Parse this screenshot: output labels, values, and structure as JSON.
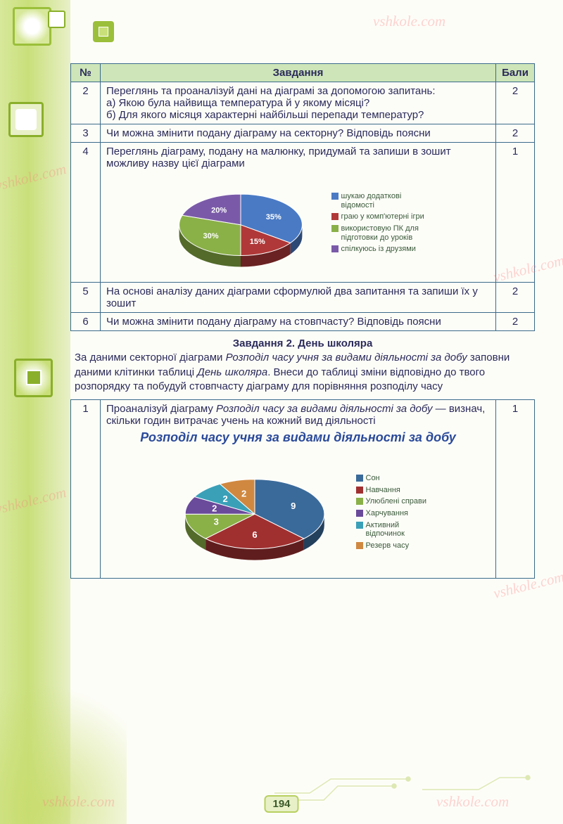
{
  "page_number": "194",
  "watermark_text": "vshkole.com",
  "table": {
    "headers": {
      "num": "№",
      "task": "Завдання",
      "score": "Бали"
    },
    "rows": [
      {
        "num": "2",
        "text": "Переглянь та проаналізуй дані на діаграмі за допомогою запитань:\nа) Якою була найвища температура й у якому місяці?\nб) Для якого місяця характерні найбільші перепади температур?",
        "score": "2"
      },
      {
        "num": "3",
        "text": "Чи можна змінити подану діаграму на секторну? Відповідь поясни",
        "score": "2"
      },
      {
        "num": "4",
        "text": "Переглянь діаграму, подану на малюнку, придумай та запиши в зошит можливу назву цієї діаграми",
        "score": "1"
      },
      {
        "num": "5",
        "text": "На основі аналізу даних діаграми сформулюй два запитання та запиши їх у зошит",
        "score": "2"
      },
      {
        "num": "6",
        "text": "Чи можна змінити подану діаграму на стовпчасту? Відповідь поясни",
        "score": "2"
      }
    ]
  },
  "chart1": {
    "type": "pie",
    "slices": [
      {
        "label": "35%",
        "value": 35,
        "color": "#4a7ac4",
        "legend": "шукаю додаткові відомості"
      },
      {
        "label": "15%",
        "value": 15,
        "color": "#b03838",
        "legend": "граю у комп'ютерні ігри"
      },
      {
        "label": "30%",
        "value": 30,
        "color": "#8ab048",
        "legend": "використовую ПК для підготовки до уроків"
      },
      {
        "label": "20%",
        "value": 20,
        "color": "#7a5aa8",
        "legend": "спілкуюсь із друзями"
      }
    ],
    "background_color": "#ffffff",
    "label_fontsize": 11,
    "legend_fontsize": 11,
    "tilt_ratio": 0.5
  },
  "task2": {
    "title": "Завдання 2. День школяра",
    "intro_prefix": "За даними секторної діаграми ",
    "intro_italic1": "Розподіл часу учня за видами діяльності за добу",
    "intro_mid": " заповни даними клітинки таблиці ",
    "intro_italic2": "День школяра",
    "intro_suffix": ". Внеси до таблиці зміни відповідно до твого розпорядку та побудуй стовпчасту діаграму для порівняння розподілу часу",
    "row1_prefix": "Проаналізуй діаграму ",
    "row1_italic": "Розподіл часу за видами діяльності за добу",
    "row1_suffix": " — визнач, скільки годин витрачає учень на кожний вид діяльності",
    "row1_num": "1",
    "row1_score": "1"
  },
  "chart2": {
    "type": "pie",
    "title": "Розподіл часу учня за видами діяльності за добу",
    "slices": [
      {
        "label": "9",
        "value": 9,
        "color": "#3a6a9a",
        "legend": "Сон"
      },
      {
        "label": "6",
        "value": 6,
        "color": "#a03030",
        "legend": "Навчання"
      },
      {
        "label": "3",
        "value": 3,
        "color": "#8ab048",
        "legend": "Улюблені справи"
      },
      {
        "label": "2",
        "value": 2,
        "color": "#6a4a9a",
        "legend": "Харчування"
      },
      {
        "label": "2",
        "value": 2,
        "color": "#3aa0b8",
        "legend": "Активний відпочинок"
      },
      {
        "label": "2",
        "value": 2,
        "color": "#d08840",
        "legend": "Резерв часу"
      }
    ],
    "title_color": "#2a4a9a",
    "title_fontsize": 18,
    "label_fontsize": 13,
    "legend_fontsize": 11,
    "tilt_ratio": 0.5
  }
}
